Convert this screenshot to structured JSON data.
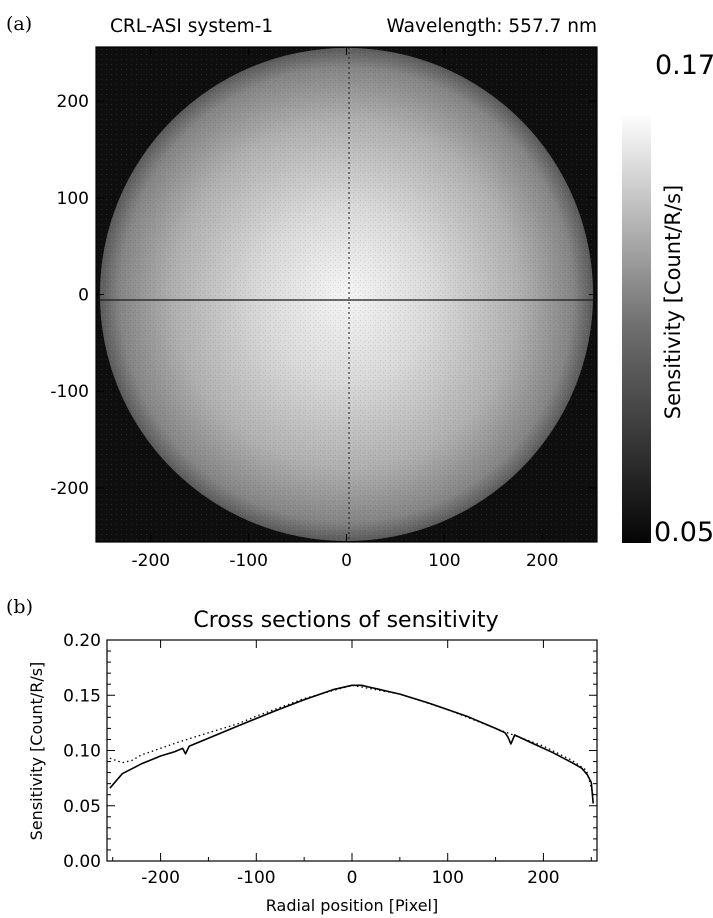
{
  "figure": {
    "panel_a_label": "(a)",
    "panel_b_label": "(b)"
  },
  "chart_data": [
    {
      "type": "heatmap",
      "title_left": "CRL-ASI system-1",
      "title_right": "Wavelength: 557.7 nm",
      "xlim": [
        -256,
        256
      ],
      "ylim": [
        -256,
        256
      ],
      "xticks": [
        -200,
        -100,
        0,
        100,
        200
      ],
      "yticks": [
        200,
        100,
        0,
        -100,
        -200
      ],
      "xtick_labels": [
        "-200",
        "-100",
        "0",
        "100",
        "200"
      ],
      "ytick_labels": [
        "200",
        "100",
        "0",
        "-100",
        "-200"
      ],
      "colorbar": {
        "min": 0.05,
        "max": 0.17,
        "min_label": "0.05",
        "max_label": "0.17",
        "label": "Sensitivity [Count/R/s]"
      },
      "field_of_view_radius": 252,
      "center_value": 0.16,
      "edge_value": 0.08,
      "colormap": "grayscale",
      "crosshair": true
    },
    {
      "type": "line",
      "title": "Cross sections of sensitivity",
      "xlabel": "Radial position [Pixel]",
      "ylabel": "Sensitivity [Count/R/s]",
      "xlim": [
        -256,
        256
      ],
      "ylim": [
        0.0,
        0.2
      ],
      "xticks": [
        -200,
        -100,
        0,
        100,
        200
      ],
      "xtick_labels": [
        "-200",
        "-100",
        "0",
        "100",
        "200"
      ],
      "yticks": [
        0.0,
        0.05,
        0.1,
        0.15,
        0.2
      ],
      "ytick_labels": [
        "0.00",
        "0.05",
        "0.10",
        "0.15",
        "0.20"
      ],
      "series": [
        {
          "style": "solid",
          "x": [
            -253,
            -240,
            -220,
            -200,
            -185,
            -177,
            -174,
            -170,
            -150,
            -120,
            -100,
            -80,
            -50,
            -20,
            0,
            10,
            20,
            50,
            80,
            100,
            120,
            150,
            160,
            163,
            166,
            170,
            190,
            210,
            230,
            240,
            246,
            250,
            252
          ],
          "y": [
            0.066,
            0.079,
            0.088,
            0.095,
            0.099,
            0.102,
            0.097,
            0.104,
            0.111,
            0.122,
            0.129,
            0.136,
            0.146,
            0.155,
            0.159,
            0.159,
            0.157,
            0.151,
            0.143,
            0.137,
            0.131,
            0.12,
            0.116,
            0.112,
            0.106,
            0.114,
            0.106,
            0.098,
            0.089,
            0.084,
            0.078,
            0.071,
            0.052
          ]
        },
        {
          "style": "dotted",
          "x": [
            -253,
            -240,
            -230,
            -220,
            -200,
            -180,
            -150,
            -120,
            -100,
            -50,
            0,
            50,
            100,
            150,
            200,
            230,
            245,
            252
          ],
          "y": [
            0.093,
            0.089,
            0.091,
            0.096,
            0.102,
            0.108,
            0.116,
            0.124,
            0.131,
            0.147,
            0.159,
            0.151,
            0.137,
            0.12,
            0.104,
            0.091,
            0.082,
            0.06
          ]
        }
      ]
    }
  ]
}
